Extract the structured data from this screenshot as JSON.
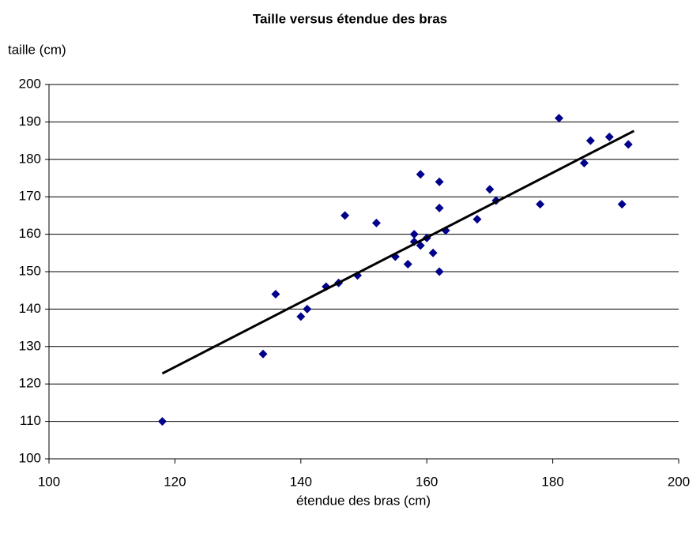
{
  "chart_data": {
    "type": "scatter",
    "title": "Taille versus étendue des bras",
    "xlabel": "étendue des bras (cm)",
    "ylabel": "taille (cm)",
    "series": [
      {
        "color": "#00008b",
        "x": [
          118,
          134,
          136,
          140,
          141,
          144,
          146,
          147,
          149,
          152,
          155,
          157,
          158,
          158,
          159,
          159,
          160,
          161,
          162,
          162,
          162,
          163,
          168,
          170,
          171,
          178,
          181,
          185,
          186,
          189,
          191,
          192
        ],
        "values": [
          110,
          128,
          144,
          138,
          140,
          146,
          147,
          165,
          149,
          163,
          154,
          152,
          160,
          158,
          176,
          157,
          159,
          155,
          174,
          167,
          150,
          161,
          164,
          172,
          169,
          168,
          191,
          179,
          185,
          186,
          168,
          184
        ]
      }
    ],
    "trendline": {
      "color": "#000000",
      "x": [
        118,
        192.9
      ],
      "values": [
        122.8,
        187.6
      ]
    },
    "xlim": [
      100,
      200
    ],
    "xticks": [
      100,
      120,
      140,
      160,
      180,
      200
    ],
    "ylim": [
      100,
      200
    ],
    "yticks": [
      100,
      110,
      120,
      130,
      140,
      150,
      160,
      170,
      180,
      190,
      200
    ],
    "grid": true
  }
}
